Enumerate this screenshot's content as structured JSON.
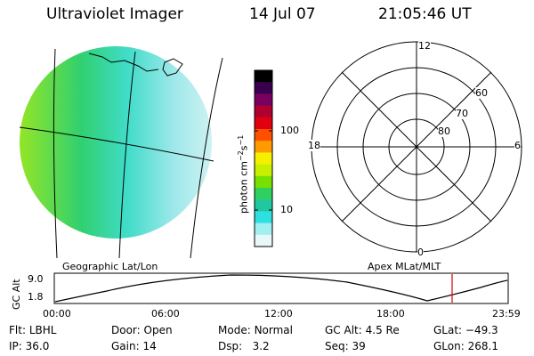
{
  "header": {
    "instrument": "Ultraviolet Imager",
    "date": "14 Jul 07",
    "time": "21:05:46 UT"
  },
  "colorbar": {
    "unit_label": "photon cm",
    "unit_exp1": "−2",
    "unit_s": "s",
    "unit_exp2": "−1",
    "ticks": [
      "100",
      "10"
    ],
    "colors": [
      "#000000",
      "#3a0050",
      "#7a0060",
      "#b00030",
      "#e00010",
      "#ff5000",
      "#ff9a00",
      "#f5f000",
      "#c8ef00",
      "#78e000",
      "#30d060",
      "#20c8a0",
      "#30e0e0",
      "#a0f0f0",
      "#e8f8f8"
    ]
  },
  "polar_plot": {
    "mlt_labels": {
      "top": "12",
      "left": "18",
      "right": "6",
      "bottom": "0"
    },
    "lat_labels": [
      "60",
      "70",
      "80"
    ]
  },
  "map_labels": {
    "left": "Geographic Lat/Lon",
    "right": "Apex MLat/MLT"
  },
  "orbit_panel": {
    "ylabel": "GC Alt",
    "yticks": [
      "9.0",
      "1.8"
    ],
    "xticks": [
      "00:00",
      "06:00",
      "12:00",
      "18:00",
      "23:59"
    ],
    "current_marker_color": "#dd0000"
  },
  "footer": {
    "row1": [
      {
        "label": "Flt:",
        "value": "LBHL"
      },
      {
        "label": "Door:",
        "value": "Open"
      },
      {
        "label": "Mode:",
        "value": "Normal"
      },
      {
        "label": "GC Alt:",
        "value": "4.5 Re"
      },
      {
        "label": "GLat:",
        "value": "−49.3"
      }
    ],
    "row2": [
      {
        "label": "IP:",
        "value": "36.0"
      },
      {
        "label": "Gain:",
        "value": "14"
      },
      {
        "label": "Dsp:",
        "value": "3.2"
      },
      {
        "label": "Seq:",
        "value": "39"
      },
      {
        "label": "GLon:",
        "value": "268.1"
      }
    ]
  }
}
